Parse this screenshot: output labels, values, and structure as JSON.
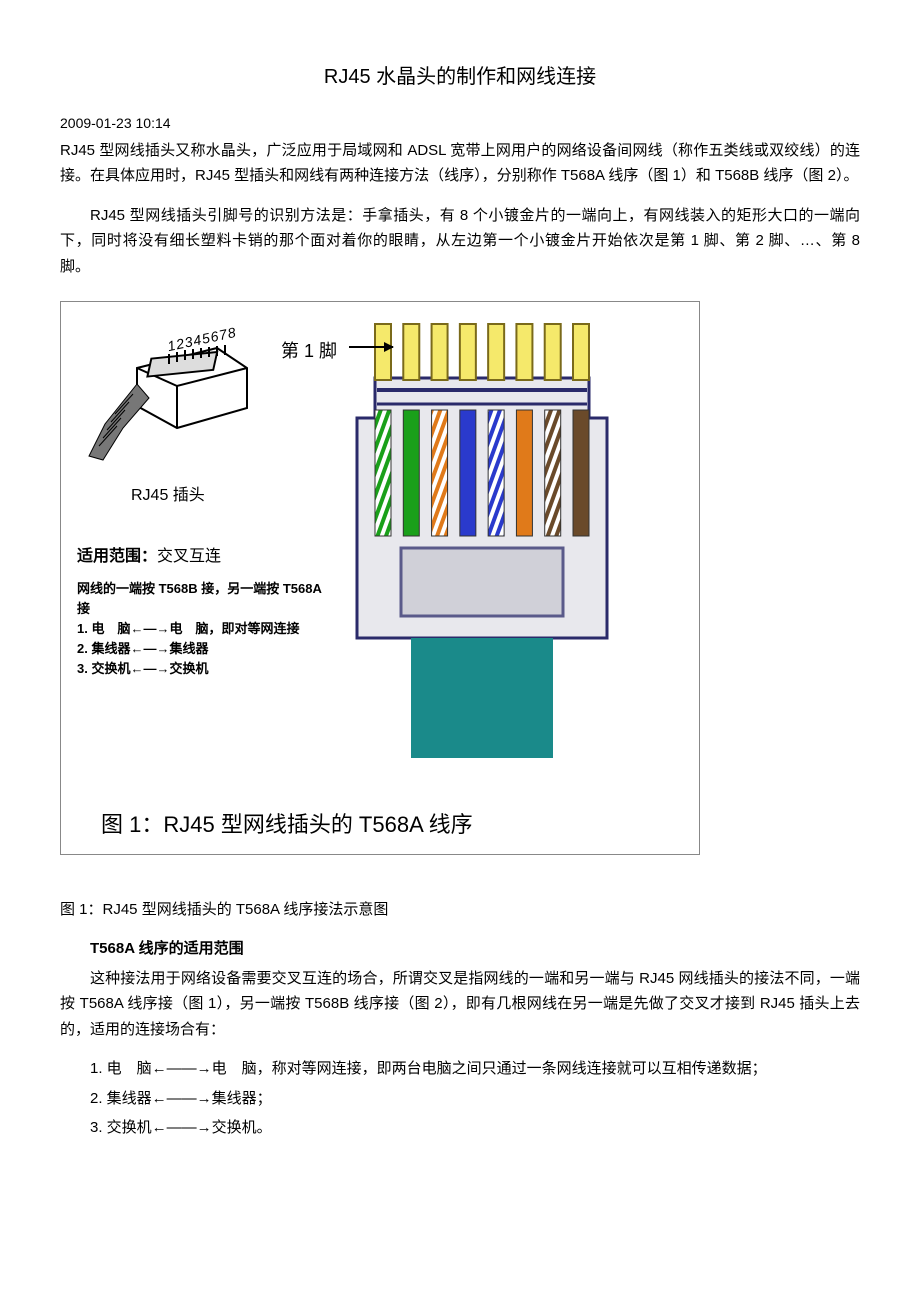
{
  "title": "RJ45 水晶头的制作和网线连接",
  "timestamp": "2009-01-23 10:14",
  "para1": "RJ45 型网线插头又称水晶头，广泛应用于局域网和 ADSL 宽带上网用户的网络设备间网线（称作五类线或双绞线）的连接。在具体应用时，RJ45 型插头和网线有两种连接方法（线序），分别称作 T568A 线序（图 1）和 T568B 线序（图 2）。",
  "para2": "RJ45 型网线插头引脚号的识别方法是：手拿插头，有 8 个小镀金片的一端向上，有网线装入的矩形大口的一端向下，同时将没有细长塑料卡销的那个面对着你的眼睛，从左边第一个小镀金片开始依次是第 1 脚、第 2 脚、…、第 8 脚。",
  "figure": {
    "plug_numbers": "12345678",
    "plug_label": "RJ45 插头",
    "pin1_label": "第 1 脚",
    "scope_title_a": "适用范围：",
    "scope_title_b": "交叉互连",
    "scope_line1": "网线的一端按 T568B 接，另一端按 T568A 接",
    "scope_line2": "1. 电　脑←—→电　脑，即对等网连接",
    "scope_line3": "2. 集线器←—→集线器",
    "scope_line4": "3. 交换机←—→交换机",
    "caption": "图 1：RJ45 型网线插头的 T568A 线序",
    "connector": {
      "body_fill": "#e8e8ed",
      "body_stroke": "#2a2a6a",
      "gold_fill": "#f5e96b",
      "gold_stroke": "#7a6a1a",
      "well_fill": "#d0d0d8",
      "well_stroke": "#5a5a8a",
      "boot_fill": "#1a8a8a",
      "wires": [
        {
          "type": "stripe",
          "c1": "#ffffff",
          "c2": "#1aa01a"
        },
        {
          "type": "solid",
          "c": "#1aa01a"
        },
        {
          "type": "stripe",
          "c1": "#ffffff",
          "c2": "#e07a1a"
        },
        {
          "type": "solid",
          "c": "#2a3acc"
        },
        {
          "type": "stripe",
          "c1": "#ffffff",
          "c2": "#2a3acc"
        },
        {
          "type": "solid",
          "c": "#e07a1a"
        },
        {
          "type": "stripe",
          "c1": "#ffffff",
          "c2": "#6a4a2a"
        },
        {
          "type": "solid",
          "c": "#6a4a2a"
        }
      ]
    }
  },
  "caption_below": "图 1：RJ45 型网线插头的 T568A 线序接法示意图",
  "section_h": "T568A 线序的适用范围",
  "para3": "这种接法用于网络设备需要交叉互连的场合，所谓交叉是指网线的一端和另一端与 RJ45 网线插头的接法不同，一端按 T568A 线序接（图 1），另一端按 T568B 线序接（图 2），即有几根网线在另一端是先做了交叉才接到 RJ45 插头上去的，适用的连接场合有：",
  "list1": "1. 电　脑←——→电　脑，称对等网连接，即两台电脑之间只通过一条网线连接就可以互相传递数据；",
  "list2": "2. 集线器←——→集线器；",
  "list3": "3. 交换机←——→交换机。"
}
